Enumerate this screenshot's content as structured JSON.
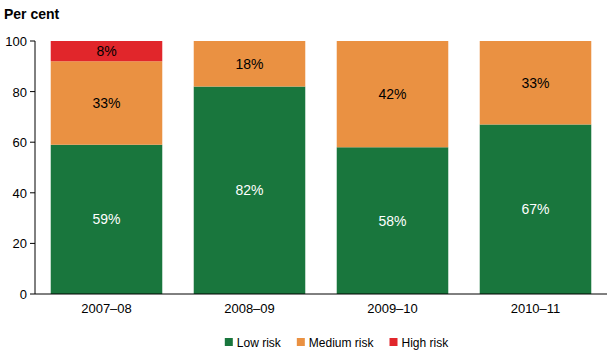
{
  "chart_data": {
    "type": "bar",
    "stacked": true,
    "data_labels": true,
    "grid": false,
    "y_label": "Per cent",
    "categories": [
      "2007–08",
      "2008–09",
      "2009–10",
      "2010–11"
    ],
    "ylim": [
      0,
      100
    ],
    "yticks": [
      0,
      20,
      40,
      60,
      80,
      100
    ],
    "legend": "bottom",
    "series": [
      {
        "name": "Low risk",
        "color": "#19763d",
        "values": [
          59,
          82,
          58,
          67
        ],
        "value_labels": [
          "59%",
          "82%",
          "58%",
          "67%"
        ]
      },
      {
        "name": "Medium risk",
        "color": "#ea9142",
        "values": [
          33,
          18,
          42,
          33
        ],
        "value_labels": [
          "33%",
          "18%",
          "42%",
          "33%"
        ]
      },
      {
        "name": "High risk",
        "color": "#e1262b",
        "values": [
          8,
          null,
          null,
          null
        ],
        "value_labels": [
          "8%",
          null,
          null,
          null
        ]
      }
    ]
  }
}
